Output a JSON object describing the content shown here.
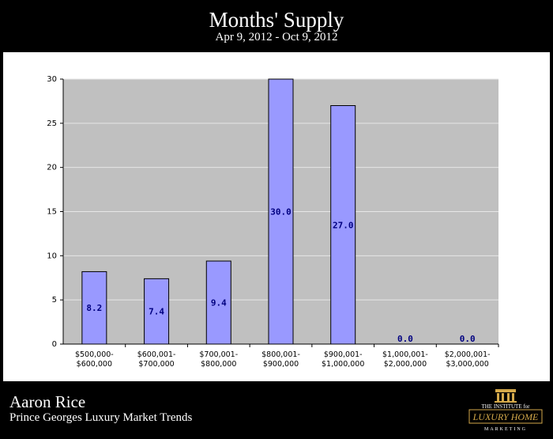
{
  "header": {
    "title": "Months' Supply",
    "subtitle": "Apr 9, 2012 - Oct 9, 2012"
  },
  "footer": {
    "agent": "Aaron Rice",
    "report": "Prince Georges Luxury Market Trends",
    "logo_text": [
      "THE INSTITUTE for",
      "LUXURY HOME",
      "MARKETING"
    ]
  },
  "colors": {
    "background": "#000000",
    "plot_area": "#c0c0c0",
    "bar_fill": "#9999ff",
    "value_label": "#000080",
    "logo_gold": "#d4a94a"
  },
  "chart_data": {
    "type": "bar",
    "categories": [
      [
        "$500,000-",
        "$600,000"
      ],
      [
        "$600,001-",
        "$700,000"
      ],
      [
        "$700,001-",
        "$800,000"
      ],
      [
        "$800,001-",
        "$900,000"
      ],
      [
        "$900,001-",
        "$1,000,000"
      ],
      [
        "$1,000,001-",
        "$2,000,000"
      ],
      [
        "$2,000,001-",
        "$3,000,000"
      ]
    ],
    "values": [
      8.2,
      7.4,
      9.4,
      30.0,
      27.0,
      0.0,
      0.0
    ],
    "value_labels": [
      "8.2",
      "7.4",
      "9.4",
      "30.0",
      "27.0",
      "0.0",
      "0.0"
    ],
    "yticks": [
      0,
      5,
      10,
      15,
      20,
      25,
      30
    ],
    "ylim": [
      0,
      30
    ],
    "grid": true,
    "title": "Months' Supply",
    "xlabel": "",
    "ylabel": ""
  }
}
